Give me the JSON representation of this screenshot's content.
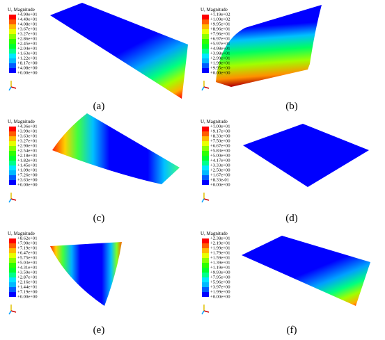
{
  "panels": [
    {
      "legend_title": "U, Magnitude",
      "legend_values": [
        "+4.90e+01",
        "+4.49e+01",
        "+4.08e+01",
        "+3.67e+01",
        "+3.27e+01",
        "+2.86e+01",
        "+2.45e+01",
        "+2.04e+01",
        "+1.63e+01",
        "+1.22e+01",
        "+8.17e+00",
        "+4.08e+00",
        "+0.00e+00"
      ],
      "caption": "(a)"
    },
    {
      "legend_title": "U, Magnitude",
      "legend_values": [
        "+1.19e+02",
        "+1.09e+02",
        "+9.95e+01",
        "+8.96e+01",
        "+7.96e+01",
        "+6.97e+01",
        "+5.97e+01",
        "+4.98e+01",
        "+3.98e+01",
        "+2.99e+01",
        "+1.99e+01",
        "+9.95e+00",
        "+0.00e+00"
      ],
      "caption": "(b)"
    },
    {
      "legend_title": "U, Magnitude",
      "legend_values": [
        "+4.36e+01",
        "+3.99e+01",
        "+3.63e+01",
        "+3.27e+01",
        "+2.90e+01",
        "+2.54e+01",
        "+2.18e+01",
        "+1.82e+01",
        "+1.45e+01",
        "+1.09e+01",
        "+7.26e+00",
        "+3.63e+00",
        "+0.00e+00"
      ],
      "caption": "(c)"
    },
    {
      "legend_title": "U, Magnitude",
      "legend_values": [
        "+1.00e+01",
        "+9.17e+00",
        "+8.33e+00",
        "+7.50e+00",
        "+6.67e+00",
        "+5.83e+00",
        "+5.00e+00",
        "+4.17e+00",
        "+3.33e+00",
        "+2.50e+00",
        "+1.67e+00",
        "+8.33e-01",
        "+0.00e+00"
      ],
      "caption": "(d)"
    },
    {
      "legend_title": "U, Magnitude",
      "legend_values": [
        "+8.62e+01",
        "+7.90e+01",
        "+7.19e+01",
        "+6.47e+01",
        "+5.75e+01",
        "+5.03e+01",
        "+4.31e+01",
        "+3.59e+01",
        "+2.87e+01",
        "+2.16e+01",
        "+1.44e+01",
        "+7.19e+00",
        "+0.00e+00"
      ],
      "caption": "(e)"
    },
    {
      "legend_title": "U, Magnitude",
      "legend_values": [
        "+2.38e+01",
        "+2.19e+01",
        "+1.99e+01",
        "+1.79e+01",
        "+1.59e+01",
        "+1.39e+01",
        "+1.19e+01",
        "+9.93e+00",
        "+7.95e+00",
        "+5.96e+00",
        "+3.97e+00",
        "+1.99e+00",
        "+0.00e+00"
      ],
      "caption": "(f)"
    }
  ]
}
